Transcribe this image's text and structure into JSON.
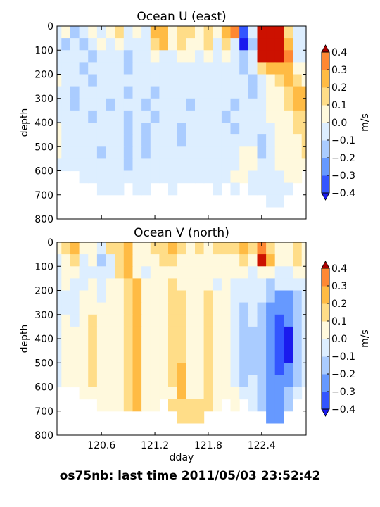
{
  "footer": "os75nb: last time 2011/05/03 23:52:42",
  "colorbar": {
    "levels": [
      -0.4,
      -0.3,
      -0.2,
      -0.1,
      0.0,
      0.1,
      0.2,
      0.3,
      0.4
    ],
    "tick_labels": [
      "0.4",
      "0.3",
      "0.2",
      "0.1",
      "0.0",
      "−0.1",
      "−0.2",
      "−0.3",
      "−0.4"
    ],
    "colors": [
      "#1a1aee",
      "#3355ff",
      "#6699ff",
      "#aaccff",
      "#ddeeff",
      "#fff9dd",
      "#ffdd88",
      "#ffbb44",
      "#ff8833",
      "#ee4411",
      "#cc1100"
    ],
    "label": "m/s"
  },
  "colorbar_under": "#1a1aee",
  "colorbar_over": "#aa0000",
  "chart_data": [
    {
      "type": "heatmap",
      "title": "Ocean U (east)",
      "ylabel": "depth",
      "xlabel": "",
      "xlim": [
        120.1,
        122.9
      ],
      "ylim": [
        800,
        0
      ],
      "yticks": [
        "0",
        "100",
        "200",
        "300",
        "400",
        "500",
        "600",
        "700",
        "800"
      ],
      "xticks": [
        120.6,
        121.2,
        121.8,
        122.4
      ],
      "cols": [
        120.1,
        120.2,
        120.3,
        120.4,
        120.5,
        120.6,
        120.7,
        120.8,
        120.9,
        121.0,
        121.1,
        121.2,
        121.3,
        121.4,
        121.5,
        121.6,
        121.7,
        121.8,
        121.9,
        122.0,
        122.1,
        122.2,
        122.3,
        122.4,
        122.5,
        122.6,
        122.7,
        122.8,
        122.9
      ],
      "rows": [
        0,
        50,
        100,
        150,
        200,
        250,
        300,
        350,
        400,
        450,
        500,
        550,
        600,
        650,
        700,
        750
      ],
      "values": [
        [
          -0.05,
          0.05,
          -0.15,
          -0.05,
          0.02,
          -0.05,
          0.05,
          0.12,
          -0.05,
          0.02,
          -0.05,
          0.22,
          0.25,
          0.08,
          0.15,
          0.12,
          0.08,
          0.12,
          0.05,
          0.25,
          0.35,
          -0.35,
          -0.05,
          0.45,
          0.45,
          0.45,
          0.15,
          -0.1,
          -0.05
        ],
        [
          -0.05,
          -0.12,
          -0.05,
          -0.15,
          -0.05,
          0.03,
          -0.05,
          0.05,
          -0.05,
          -0.05,
          -0.05,
          0.15,
          0.2,
          0.05,
          0.1,
          0.05,
          0.05,
          0.1,
          -0.05,
          0.15,
          -0.05,
          -0.45,
          -0.15,
          0.45,
          0.45,
          0.45,
          0.25,
          -0.1,
          -0.05
        ],
        [
          -0.05,
          -0.05,
          -0.05,
          -0.05,
          -0.12,
          -0.05,
          -0.05,
          -0.05,
          -0.15,
          -0.05,
          -0.05,
          0.05,
          -0.05,
          -0.05,
          0.05,
          0.05,
          -0.05,
          0.05,
          -0.05,
          0.05,
          -0.05,
          -0.15,
          -0.05,
          0.45,
          0.45,
          0.45,
          0.35,
          -0.05,
          -0.05
        ],
        [
          -0.05,
          -0.05,
          -0.05,
          -0.12,
          -0.05,
          -0.05,
          -0.05,
          -0.05,
          -0.12,
          -0.05,
          -0.05,
          -0.05,
          -0.05,
          -0.05,
          -0.05,
          -0.05,
          -0.05,
          -0.05,
          -0.05,
          -0.05,
          -0.05,
          -0.12,
          -0.05,
          0.15,
          0.2,
          0.25,
          0.2,
          0.05,
          0.05
        ],
        [
          0.05,
          -0.05,
          -0.05,
          -0.05,
          -0.12,
          -0.05,
          -0.05,
          -0.05,
          -0.05,
          -0.05,
          -0.05,
          -0.05,
          -0.05,
          -0.05,
          -0.05,
          -0.05,
          -0.05,
          -0.05,
          -0.05,
          -0.05,
          -0.05,
          -0.05,
          -0.12,
          -0.05,
          0.05,
          0.15,
          0.2,
          0.15,
          0.05
        ],
        [
          -0.05,
          -0.05,
          -0.12,
          -0.05,
          -0.05,
          -0.05,
          -0.05,
          -0.05,
          -0.12,
          -0.05,
          -0.05,
          -0.12,
          -0.05,
          -0.05,
          -0.05,
          -0.05,
          -0.05,
          -0.05,
          -0.05,
          -0.05,
          -0.05,
          -0.05,
          -0.12,
          -0.05,
          0.05,
          0.05,
          0.15,
          0.25,
          0.25
        ],
        [
          -0.05,
          -0.05,
          -0.12,
          -0.05,
          -0.05,
          -0.05,
          -0.12,
          -0.05,
          -0.05,
          -0.05,
          -0.12,
          -0.05,
          -0.05,
          -0.05,
          -0.05,
          -0.12,
          -0.05,
          -0.05,
          -0.05,
          -0.05,
          -0.12,
          -0.05,
          -0.05,
          -0.05,
          0.05,
          0.05,
          0.15,
          0.25,
          0.25
        ],
        [
          -0.05,
          -0.05,
          -0.05,
          -0.05,
          -0.12,
          -0.05,
          -0.05,
          -0.05,
          -0.12,
          -0.05,
          -0.05,
          -0.12,
          -0.05,
          -0.05,
          -0.05,
          -0.05,
          -0.05,
          -0.05,
          -0.05,
          -0.12,
          -0.05,
          -0.05,
          -0.05,
          -0.05,
          0.05,
          0.05,
          0.05,
          0.15,
          0.15
        ],
        [
          0.05,
          -0.05,
          -0.05,
          -0.05,
          -0.05,
          -0.05,
          -0.05,
          -0.05,
          -0.12,
          -0.05,
          -0.12,
          -0.05,
          -0.05,
          -0.05,
          -0.12,
          -0.05,
          -0.05,
          -0.05,
          -0.05,
          -0.05,
          -0.12,
          -0.05,
          -0.05,
          -0.05,
          -0.05,
          0.05,
          0.05,
          0.15,
          0.15
        ],
        [
          0.05,
          -0.05,
          -0.05,
          -0.05,
          -0.05,
          -0.05,
          -0.05,
          -0.05,
          -0.12,
          -0.05,
          -0.12,
          -0.05,
          -0.05,
          -0.05,
          -0.12,
          -0.05,
          -0.05,
          -0.05,
          -0.05,
          -0.05,
          -0.05,
          -0.05,
          -0.05,
          -0.12,
          -0.05,
          0.05,
          0.05,
          0.05,
          0.15
        ],
        [
          0.05,
          -0.05,
          -0.05,
          -0.05,
          -0.05,
          -0.12,
          -0.05,
          -0.05,
          -0.12,
          -0.05,
          -0.12,
          -0.05,
          -0.05,
          -0.05,
          -0.05,
          -0.05,
          -0.05,
          -0.05,
          -0.05,
          -0.05,
          -0.05,
          0.05,
          0.05,
          -0.12,
          -0.05,
          0.05,
          0.05,
          0.05,
          0.15
        ],
        [
          -0.05,
          -0.05,
          -0.05,
          -0.05,
          -0.05,
          -0.05,
          -0.05,
          -0.05,
          -0.12,
          -0.05,
          -0.05,
          -0.05,
          -0.05,
          -0.05,
          -0.05,
          -0.05,
          -0.05,
          -0.05,
          -0.05,
          -0.05,
          -0.05,
          0.05,
          0.05,
          -0.05,
          -0.05,
          0.05,
          0.05,
          0.05,
          0.05
        ],
        [
          null,
          null,
          null,
          -0.05,
          -0.05,
          -0.05,
          -0.05,
          -0.05,
          -0.05,
          -0.05,
          -0.05,
          -0.05,
          -0.05,
          -0.05,
          -0.05,
          -0.05,
          -0.05,
          -0.05,
          -0.05,
          -0.05,
          0.05,
          0.05,
          -0.05,
          -0.05,
          -0.05,
          -0.05,
          0.05,
          0.05,
          null
        ],
        [
          null,
          null,
          null,
          null,
          null,
          -0.05,
          -0.05,
          -0.05,
          null,
          -0.05,
          -0.05,
          null,
          null,
          -0.05,
          null,
          null,
          null,
          null,
          -0.05,
          null,
          -0.05,
          null,
          -0.05,
          -0.05,
          -0.05,
          -0.05,
          -0.05,
          null,
          null
        ],
        [
          null,
          null,
          null,
          null,
          null,
          null,
          null,
          null,
          null,
          null,
          null,
          null,
          null,
          null,
          null,
          null,
          null,
          null,
          null,
          null,
          null,
          null,
          null,
          null,
          -0.05,
          -0.05,
          null,
          null,
          null
        ],
        [
          null,
          null,
          null,
          null,
          null,
          null,
          null,
          null,
          null,
          null,
          null,
          null,
          null,
          null,
          null,
          null,
          null,
          null,
          null,
          null,
          null,
          null,
          null,
          null,
          null,
          null,
          null,
          null,
          null
        ]
      ]
    },
    {
      "type": "heatmap",
      "title": "Ocean V (north)",
      "ylabel": "depth",
      "xlabel": "dday",
      "xlim": [
        120.1,
        122.9
      ],
      "ylim": [
        800,
        0
      ],
      "yticks": [
        "0",
        "100",
        "200",
        "300",
        "400",
        "500",
        "600",
        "700",
        "800"
      ],
      "xticks": [
        120.6,
        121.2,
        121.8,
        122.4
      ],
      "cols": [
        120.1,
        120.2,
        120.3,
        120.4,
        120.5,
        120.6,
        120.7,
        120.8,
        120.9,
        121.0,
        121.1,
        121.2,
        121.3,
        121.4,
        121.5,
        121.6,
        121.7,
        121.8,
        121.9,
        122.0,
        122.1,
        122.2,
        122.3,
        122.4,
        122.5,
        122.6,
        122.7,
        122.8,
        122.9
      ],
      "rows": [
        0,
        50,
        100,
        150,
        200,
        250,
        300,
        350,
        400,
        450,
        500,
        550,
        600,
        650,
        700,
        750
      ],
      "values": [
        [
          0.05,
          0.15,
          0.25,
          0.05,
          0.05,
          -0.05,
          0.15,
          0.15,
          0.25,
          0.05,
          0.05,
          0.15,
          0.15,
          0.25,
          0.15,
          0.05,
          0.15,
          0.05,
          0.15,
          0.15,
          0.15,
          0.25,
          0.15,
          0.35,
          0.15,
          0.05,
          0.05,
          0.15,
          0.05
        ],
        [
          -0.05,
          0.05,
          0.15,
          -0.05,
          0.05,
          -0.12,
          -0.05,
          0.15,
          0.25,
          0.05,
          0.05,
          0.05,
          0.15,
          0.15,
          0.05,
          0.05,
          0.05,
          0.05,
          0.05,
          0.05,
          0.05,
          0.15,
          0.05,
          0.45,
          0.25,
          0.05,
          0.05,
          0.15,
          0.05
        ],
        [
          -0.05,
          0.05,
          0.05,
          -0.05,
          -0.05,
          -0.05,
          -0.05,
          0.15,
          0.25,
          0.05,
          -0.05,
          0.05,
          0.05,
          0.05,
          0.05,
          0.05,
          0.05,
          0.05,
          0.05,
          0.05,
          0.05,
          0.05,
          -0.05,
          0.05,
          0.05,
          -0.05,
          -0.05,
          0.05,
          0.05
        ],
        [
          -0.05,
          0.05,
          -0.05,
          -0.05,
          0.05,
          -0.05,
          0.05,
          0.05,
          0.15,
          0.25,
          0.05,
          0.05,
          0.05,
          0.15,
          0.05,
          0.05,
          0.05,
          0.05,
          -0.05,
          0.05,
          -0.05,
          -0.05,
          -0.05,
          -0.05,
          -0.12,
          -0.05,
          -0.05,
          -0.05,
          -0.05
        ],
        [
          -0.05,
          -0.05,
          -0.05,
          0.05,
          0.05,
          -0.05,
          0.05,
          0.05,
          0.15,
          0.25,
          0.05,
          0.05,
          0.05,
          0.15,
          0.15,
          0.05,
          0.05,
          0.15,
          0.05,
          0.05,
          -0.05,
          -0.05,
          -0.05,
          -0.05,
          -0.15,
          -0.25,
          -0.25,
          -0.12,
          -0.05
        ],
        [
          -0.05,
          -0.05,
          -0.05,
          0.05,
          0.05,
          0.05,
          0.05,
          0.05,
          0.15,
          0.25,
          0.05,
          0.05,
          0.05,
          0.15,
          0.15,
          0.05,
          0.05,
          0.15,
          0.05,
          0.05,
          -0.05,
          -0.12,
          -0.05,
          -0.12,
          -0.25,
          -0.25,
          -0.25,
          -0.12,
          -0.05
        ],
        [
          -0.05,
          0.05,
          -0.05,
          0.05,
          0.15,
          0.05,
          0.05,
          0.05,
          0.15,
          0.25,
          0.05,
          0.05,
          0.05,
          0.15,
          0.15,
          0.05,
          0.05,
          0.15,
          0.05,
          0.05,
          -0.05,
          -0.12,
          -0.05,
          -0.15,
          -0.25,
          -0.35,
          -0.25,
          -0.15,
          -0.05
        ],
        [
          -0.05,
          0.05,
          0.05,
          0.05,
          0.15,
          0.05,
          0.05,
          0.05,
          0.15,
          0.25,
          0.05,
          0.05,
          0.05,
          0.15,
          0.15,
          0.05,
          0.05,
          0.15,
          0.05,
          0.05,
          -0.05,
          -0.12,
          -0.12,
          -0.2,
          -0.3,
          -0.35,
          -0.45,
          -0.15,
          -0.05
        ],
        [
          -0.05,
          0.05,
          0.05,
          0.05,
          0.15,
          0.05,
          0.05,
          0.05,
          0.15,
          0.25,
          0.05,
          0.05,
          0.05,
          0.15,
          0.15,
          0.05,
          0.05,
          0.15,
          0.05,
          0.05,
          -0.05,
          -0.12,
          -0.15,
          -0.2,
          -0.3,
          -0.35,
          -0.45,
          -0.15,
          -0.05
        ],
        [
          -0.05,
          0.05,
          0.05,
          0.05,
          0.15,
          0.05,
          0.05,
          0.05,
          0.15,
          0.25,
          0.05,
          0.05,
          0.05,
          0.15,
          0.15,
          0.05,
          0.05,
          0.15,
          0.05,
          0.05,
          -0.05,
          -0.15,
          -0.12,
          -0.2,
          -0.3,
          -0.35,
          -0.45,
          -0.15,
          -0.05
        ],
        [
          -0.05,
          0.05,
          0.05,
          0.05,
          0.15,
          0.05,
          0.05,
          0.05,
          0.15,
          0.25,
          0.05,
          0.05,
          0.05,
          0.15,
          0.25,
          0.05,
          0.05,
          0.15,
          0.05,
          0.05,
          -0.05,
          -0.15,
          -0.12,
          -0.2,
          -0.3,
          -0.35,
          -0.3,
          -0.15,
          -0.05
        ],
        [
          -0.05,
          0.05,
          0.05,
          0.05,
          0.15,
          0.05,
          0.05,
          0.05,
          0.15,
          0.25,
          0.05,
          0.05,
          0.05,
          0.15,
          0.25,
          0.05,
          0.05,
          0.15,
          0.05,
          0.05,
          -0.05,
          -0.12,
          -0.05,
          -0.15,
          -0.25,
          -0.3,
          -0.25,
          -0.12,
          -0.05
        ],
        [
          null,
          null,
          null,
          0.05,
          0.05,
          0.05,
          0.05,
          0.05,
          0.15,
          0.25,
          0.05,
          0.05,
          0.05,
          0.05,
          0.25,
          0.05,
          0.05,
          0.15,
          0.05,
          0.05,
          0.05,
          -0.05,
          -0.05,
          -0.15,
          -0.25,
          -0.25,
          -0.15,
          -0.05,
          null
        ],
        [
          null,
          null,
          null,
          null,
          null,
          0.05,
          0.05,
          0.05,
          0.15,
          0.25,
          0.05,
          0.05,
          null,
          0.15,
          0.15,
          0.15,
          0.15,
          0.15,
          0.05,
          null,
          0.05,
          null,
          -0.05,
          -0.15,
          -0.25,
          -0.25,
          -0.12,
          null,
          null
        ],
        [
          null,
          null,
          null,
          null,
          null,
          null,
          null,
          null,
          null,
          null,
          null,
          null,
          null,
          null,
          0.15,
          0.15,
          0.15,
          null,
          null,
          null,
          null,
          null,
          null,
          null,
          -0.25,
          -0.25,
          null,
          null,
          null
        ],
        [
          null,
          null,
          null,
          null,
          null,
          null,
          null,
          null,
          null,
          null,
          null,
          null,
          null,
          null,
          null,
          null,
          null,
          null,
          null,
          null,
          null,
          null,
          null,
          null,
          null,
          null,
          null,
          null,
          null
        ]
      ]
    }
  ]
}
